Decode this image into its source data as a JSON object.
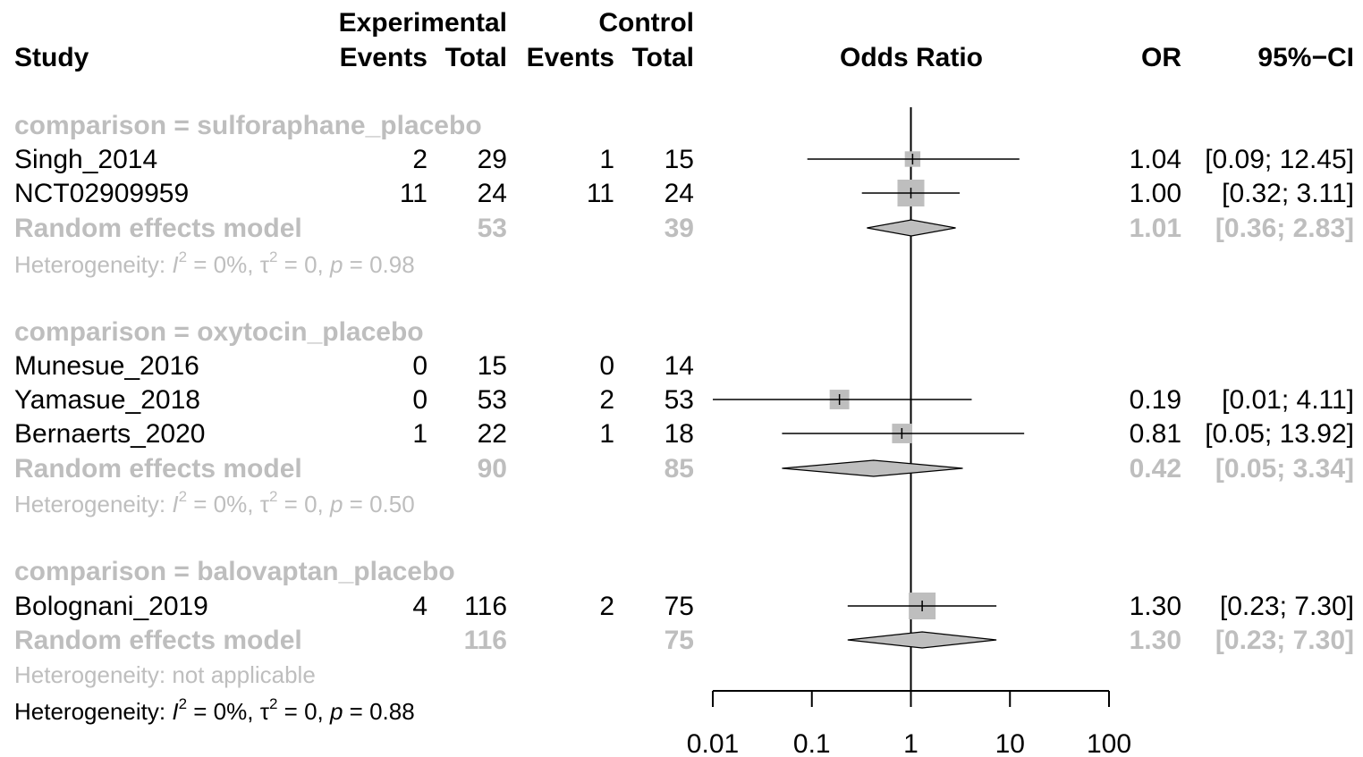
{
  "headers": {
    "study": "Study",
    "experimental": "Experimental",
    "control": "Control",
    "exp_events": "Events",
    "exp_total": "Total",
    "ctl_events": "Events",
    "ctl_total": "Total",
    "odds_ratio": "Odds Ratio",
    "or": "OR",
    "ci": "95%−CI"
  },
  "heterogeneity_overall": {
    "label": "Heterogeneity: ",
    "i2": "I",
    "sup": "2",
    "rest": " = 0%, ",
    "tau": "τ",
    "tau_sup": "2",
    "tau_rest": " = 0, ",
    "p": "p",
    "p_rest": " = 0.88"
  },
  "chart_data": {
    "type": "forest",
    "xlabel": "",
    "x_scale": "log",
    "xlim": [
      0.01,
      100
    ],
    "x_ticks": [
      "0.01",
      "0.1",
      "1",
      "10",
      "100"
    ],
    "reference_line": 1,
    "colors": {
      "text": "#000000",
      "subgroup": "#bebebe",
      "box": "#bebebe",
      "diamond": "#bebebe"
    },
    "groups": [
      {
        "title": "comparison = sulforaphane_placebo",
        "studies": [
          {
            "name": "Singh_2014",
            "e_events": "2",
            "e_total": "29",
            "c_events": "1",
            "c_total": "15",
            "or": 1.04,
            "lo": 0.09,
            "hi": 12.45,
            "or_text": "1.04",
            "ci_text": "[0.09; 12.45]",
            "weight": 0.3
          },
          {
            "name": "NCT02909959",
            "e_events": "11",
            "e_total": "24",
            "c_events": "11",
            "c_total": "24",
            "or": 1.0,
            "lo": 0.32,
            "hi": 3.11,
            "or_text": "1.00",
            "ci_text": "[0.32;  3.11]",
            "weight": 1.0
          }
        ],
        "pooled": {
          "label": "Random effects model",
          "e_total": "53",
          "c_total": "39",
          "or": 1.01,
          "lo": 0.36,
          "hi": 2.83,
          "or_text": "1.01",
          "ci_text": "[0.36;  2.83]"
        },
        "heterogeneity": {
          "label": "Heterogeneity: ",
          "i2": "I",
          "sup": "2",
          "rest": " = 0%, ",
          "tau": "τ",
          "tau_sup": "2",
          "tau_rest": " = 0, ",
          "p": "p",
          "p_rest": " = 0.98"
        }
      },
      {
        "title": "comparison = oxytocin_placebo",
        "studies": [
          {
            "name": "Munesue_2016",
            "e_events": "0",
            "e_total": "15",
            "c_events": "0",
            "c_total": "14",
            "or": null,
            "lo": null,
            "hi": null,
            "or_text": "",
            "ci_text": "",
            "weight": 0
          },
          {
            "name": "Yamasue_2018",
            "e_events": "0",
            "e_total": "53",
            "c_events": "2",
            "c_total": "53",
            "or": 0.19,
            "lo": 0.01,
            "hi": 4.11,
            "or_text": "0.19",
            "ci_text": "[0.01;  4.11]",
            "weight": 0.55,
            "lo_arrow": true
          },
          {
            "name": "Bernaerts_2020",
            "e_events": "1",
            "e_total": "22",
            "c_events": "1",
            "c_total": "18",
            "or": 0.81,
            "lo": 0.05,
            "hi": 13.92,
            "or_text": "0.81",
            "ci_text": "[0.05; 13.92]",
            "weight": 0.55
          }
        ],
        "pooled": {
          "label": "Random effects model",
          "e_total": "90",
          "c_total": "85",
          "or": 0.42,
          "lo": 0.05,
          "hi": 3.34,
          "or_text": "0.42",
          "ci_text": "[0.05;  3.34]"
        },
        "heterogeneity": {
          "label": "Heterogeneity: ",
          "i2": "I",
          "sup": "2",
          "rest": " = 0%, ",
          "tau": "τ",
          "tau_sup": "2",
          "tau_rest": " = 0, ",
          "p": "p",
          "p_rest": " = 0.50"
        }
      },
      {
        "title": "comparison = balovaptan_placebo",
        "studies": [
          {
            "name": "Bolognani_2019",
            "e_events": "4",
            "e_total": "116",
            "c_events": "2",
            "c_total": "75",
            "or": 1.3,
            "lo": 0.23,
            "hi": 7.3,
            "or_text": "1.30",
            "ci_text": "[0.23;  7.30]",
            "weight": 1.0
          }
        ],
        "pooled": {
          "label": "Random effects model",
          "e_total": "116",
          "c_total": "75",
          "or": 1.3,
          "lo": 0.23,
          "hi": 7.3,
          "or_text": "1.30",
          "ci_text": "[0.23;  7.30]"
        },
        "heterogeneity": {
          "label": "Heterogeneity: not applicable"
        }
      }
    ]
  }
}
